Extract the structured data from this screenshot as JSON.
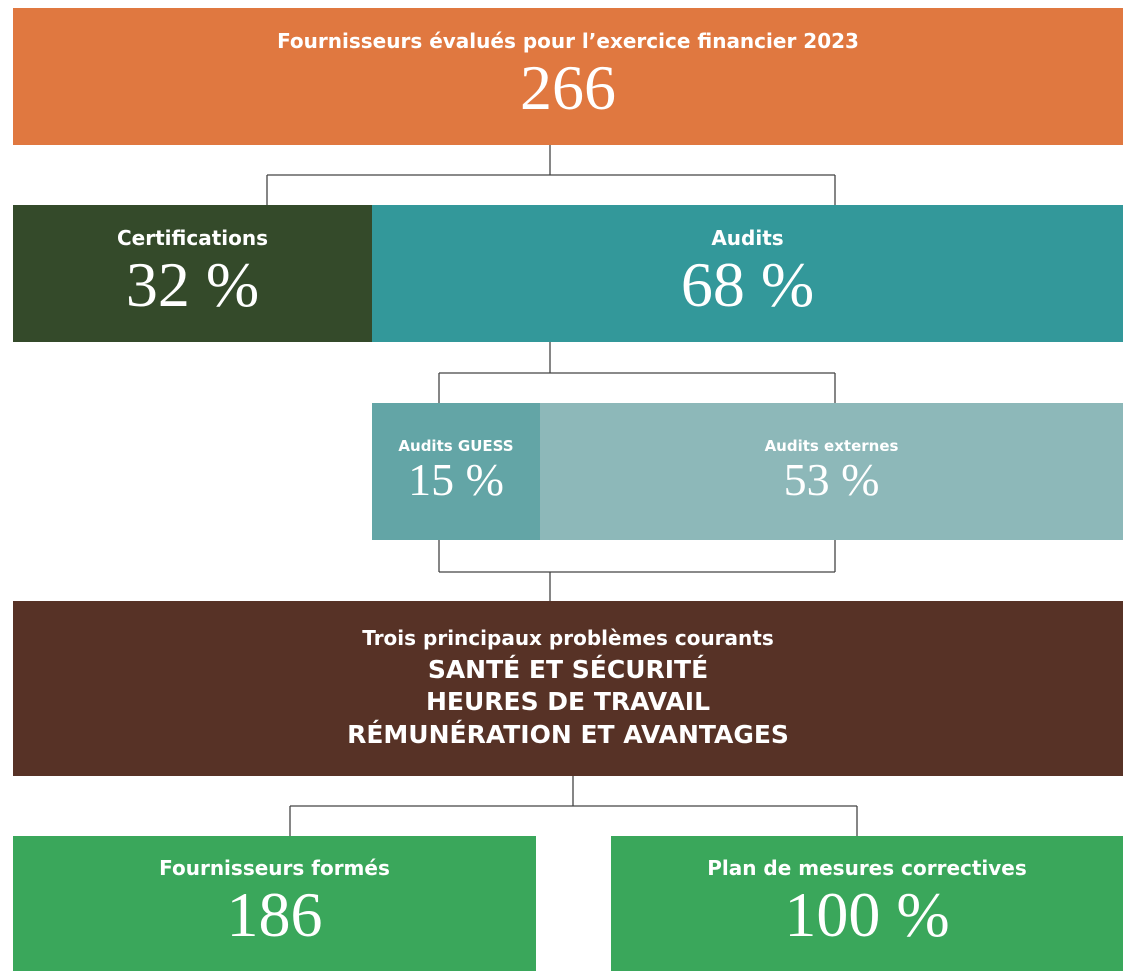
{
  "header": {
    "title": "Fournisseurs évalués pour l’exercice financier 2023",
    "value": "266"
  },
  "branches": [
    {
      "label": "Certifications",
      "value": "32 %"
    },
    {
      "label": "Audits",
      "value": "68 %"
    }
  ],
  "audits": [
    {
      "label": "Audits GUESS",
      "value": "15 %"
    },
    {
      "label": "Audits externes",
      "value": "53 %"
    }
  ],
  "issues": {
    "title": "Trois principaux problèmes courants",
    "items": [
      "SANTÉ ET SÉCURITÉ",
      "HEURES DE TRAVAIL",
      "RÉMUNÉRATION ET AVANTAGES"
    ]
  },
  "outcomes": [
    {
      "label": "Fournisseurs formés",
      "value": "186"
    },
    {
      "label": "Plan de mesures correctives",
      "value": "100 %"
    }
  ]
}
